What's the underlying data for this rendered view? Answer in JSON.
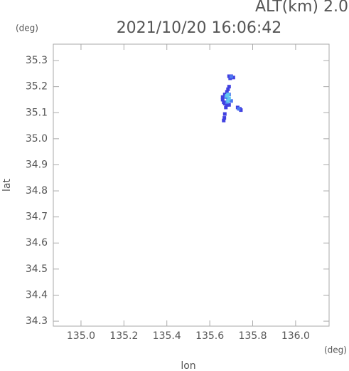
{
  "chart_data": {
    "type": "scatter",
    "title": "2021/10/20 16:06:42",
    "annotation": "ALT(km) 2.0",
    "y_unit": "(deg)",
    "x_unit": "(deg)",
    "xlabel": "lon",
    "ylabel": "lat",
    "xlim": [
      134.871,
      136.156
    ],
    "ylim": [
      34.281,
      35.363
    ],
    "xticks": [
      {
        "value": 135.0,
        "label": "135.0"
      },
      {
        "value": 135.2,
        "label": "135.2"
      },
      {
        "value": 135.4,
        "label": "135.4"
      },
      {
        "value": 135.6,
        "label": "135.6"
      },
      {
        "value": 135.8,
        "label": "135.8"
      },
      {
        "value": 136.0,
        "label": "136.0"
      }
    ],
    "yticks": [
      {
        "value": 34.3,
        "label": "34.3"
      },
      {
        "value": 34.4,
        "label": "34.4"
      },
      {
        "value": 34.5,
        "label": "34.5"
      },
      {
        "value": 34.6,
        "label": "34.6"
      },
      {
        "value": 34.7,
        "label": "34.7"
      },
      {
        "value": 34.8,
        "label": "34.8"
      },
      {
        "value": 34.9,
        "label": "34.9"
      },
      {
        "value": 35.0,
        "label": "35.0"
      },
      {
        "value": 35.1,
        "label": "35.1"
      },
      {
        "value": 35.2,
        "label": "35.2"
      },
      {
        "value": 35.3,
        "label": "35.3"
      }
    ],
    "series": [
      {
        "color": "#4040e0",
        "x": [
          135.69,
          135.7,
          135.71,
          135.695,
          135.66,
          135.665,
          135.67,
          135.68,
          135.69,
          135.66,
          135.67,
          135.68,
          135.685,
          135.69,
          135.73,
          135.74,
          135.745,
          135.67,
          135.668,
          135.665,
          135.675
        ],
        "y": [
          35.24,
          35.24,
          35.235,
          35.232,
          35.15,
          35.14,
          35.135,
          35.13,
          35.13,
          35.16,
          35.17,
          35.18,
          35.19,
          35.2,
          35.12,
          35.115,
          35.11,
          35.095,
          35.08,
          35.07,
          35.12
        ]
      },
      {
        "color": "#4a78f0",
        "x": [
          135.675,
          135.685,
          135.68,
          135.69,
          135.7,
          135.735,
          135.7
        ],
        "y": [
          35.16,
          35.15,
          35.14,
          35.17,
          35.145,
          35.115,
          35.238
        ]
      },
      {
        "color": "#60c8f0",
        "x": [
          135.68,
          135.685,
          135.69,
          135.685
        ],
        "y": [
          35.165,
          35.17,
          35.155,
          35.145
        ]
      }
    ]
  }
}
